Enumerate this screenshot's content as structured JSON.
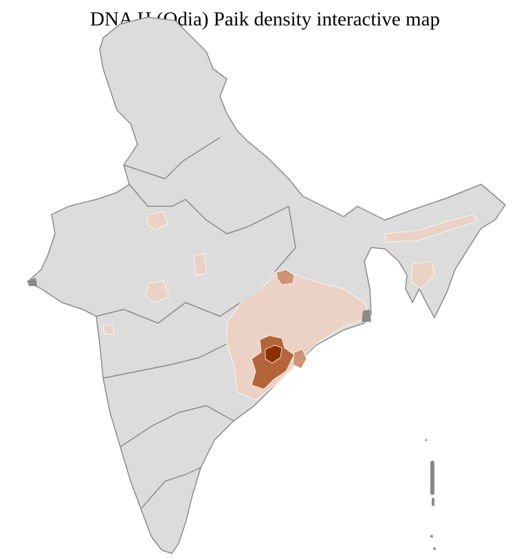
{
  "title": "DNA H (Odia) Paik density interactive map",
  "legend_colors": {
    "none": "#dcdcdc",
    "low": "#ebd2c5",
    "medium": "#cf9473",
    "high": "#b5643a",
    "highest": "#8b2e00",
    "border": "#8a8a8a"
  },
  "regions": [
    {
      "id": "odisha-chhattisgarh-belt",
      "level": "low"
    },
    {
      "id": "jharkhand-north",
      "level": "medium"
    },
    {
      "id": "koraput-cluster",
      "level": "high"
    },
    {
      "id": "nabarangpur-core",
      "level": "highest"
    },
    {
      "id": "ganjam-area",
      "level": "medium"
    },
    {
      "id": "rajasthan-east-patch",
      "level": "low"
    },
    {
      "id": "mp-north-patch",
      "level": "low"
    },
    {
      "id": "mp-west-patch",
      "level": "low"
    },
    {
      "id": "gujarat-coast-patch",
      "level": "low"
    },
    {
      "id": "assam-valley",
      "level": "low"
    },
    {
      "id": "assam-south",
      "level": "low"
    }
  ]
}
